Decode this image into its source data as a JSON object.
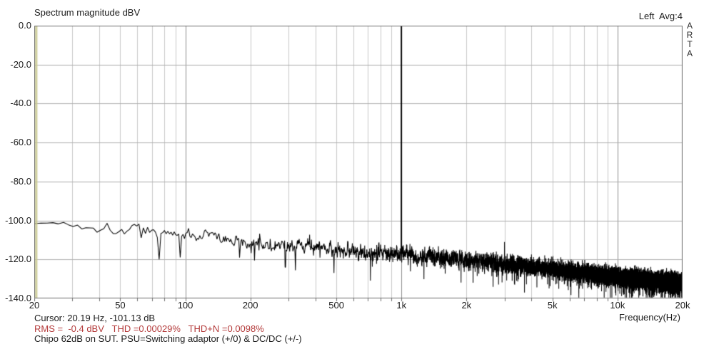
{
  "header": {
    "title": "Spectrum magnitude dBV",
    "channel_info": "Left  Avg:4"
  },
  "branding": {
    "vertical_label": "ARTA"
  },
  "footer": {
    "cursor_readout": "Cursor: 20.19 Hz, -101.13 dB",
    "measurement_readout": "RMS =  -0.4 dBV   THD =0.00029%   THD+N =0.0098%",
    "note": "Chipo 62dB on SUT. PSU=Switching adaptor (+/0) & DC/DC (+/-)"
  },
  "colors": {
    "background": "#ffffff",
    "trace": "#000000",
    "grid_light": "#c9c9c9",
    "grid_decade": "#8f8f8f",
    "grid_horizontal": "#aeaeae",
    "border": "#6f6f6f",
    "cursor_marker": "#c9c98f",
    "text": "#1c1c1c",
    "measurement_text": "#b43b3b"
  },
  "chart_data": {
    "type": "line",
    "title": "Spectrum magnitude dBV",
    "xlabel": "Frequency(Hz)",
    "ylabel": "dBV",
    "x_scale": "log",
    "xlim": [
      20,
      20000
    ],
    "ylim": [
      -140,
      0
    ],
    "grid": true,
    "y_ticks": [
      "0.0",
      "-20.0",
      "-40.0",
      "-60.0",
      "-80.0",
      "-100.0",
      "-120.0",
      "-140.0"
    ],
    "x_ticks": [
      {
        "label": "20",
        "f": 20
      },
      {
        "label": "50",
        "f": 50
      },
      {
        "label": "100",
        "f": 100
      },
      {
        "label": "200",
        "f": 200
      },
      {
        "label": "500",
        "f": 500
      },
      {
        "label": "1k",
        "f": 1000
      },
      {
        "label": "2k",
        "f": 2000
      },
      {
        "label": "5k",
        "f": 5000
      },
      {
        "label": "10k",
        "f": 10000
      },
      {
        "label": "20k",
        "f": 20000
      }
    ],
    "grid_freqs": [
      30,
      40,
      50,
      60,
      70,
      80,
      90,
      100,
      200,
      300,
      400,
      500,
      600,
      700,
      800,
      900,
      1000,
      2000,
      3000,
      4000,
      5000,
      6000,
      7000,
      8000,
      9000,
      10000
    ],
    "decade_freqs": [
      100,
      1000,
      10000
    ],
    "cursor": {
      "freq_hz": 20.19,
      "level_db": -101.13
    },
    "fundamental": {
      "freq_hz": 1000,
      "level_dbv": -0.4
    },
    "harmonics": [
      {
        "freq_hz": 2000,
        "level_db": -119
      },
      {
        "freq_hz": 3000,
        "level_db": -111
      },
      {
        "freq_hz": 5000,
        "level_db": -126
      }
    ],
    "notches": [
      [
        76,
        -120
      ],
      [
        95,
        -119
      ],
      [
        290,
        -124
      ]
    ],
    "noise_floor_envelope": [
      [
        20,
        -101
      ],
      [
        30,
        -102
      ],
      [
        50,
        -104
      ],
      [
        100,
        -107
      ],
      [
        200,
        -111
      ],
      [
        500,
        -115
      ],
      [
        1000,
        -117
      ],
      [
        2000,
        -120
      ],
      [
        5000,
        -125
      ],
      [
        10000,
        -129
      ],
      [
        20000,
        -132.5
      ]
    ],
    "noise_spread_db": [
      [
        20,
        0.8
      ],
      [
        30,
        2.2
      ],
      [
        60,
        2.8
      ],
      [
        150,
        3.0
      ],
      [
        500,
        3.5
      ],
      [
        2000,
        4.0
      ],
      [
        20000,
        4.2
      ]
    ],
    "fft_bin_hz": 1.4648,
    "noise_seed": 1337,
    "measurements": {
      "rms_dbv": -0.4,
      "thd_pct": 0.00029,
      "thd_n_pct": 0.0098
    }
  }
}
